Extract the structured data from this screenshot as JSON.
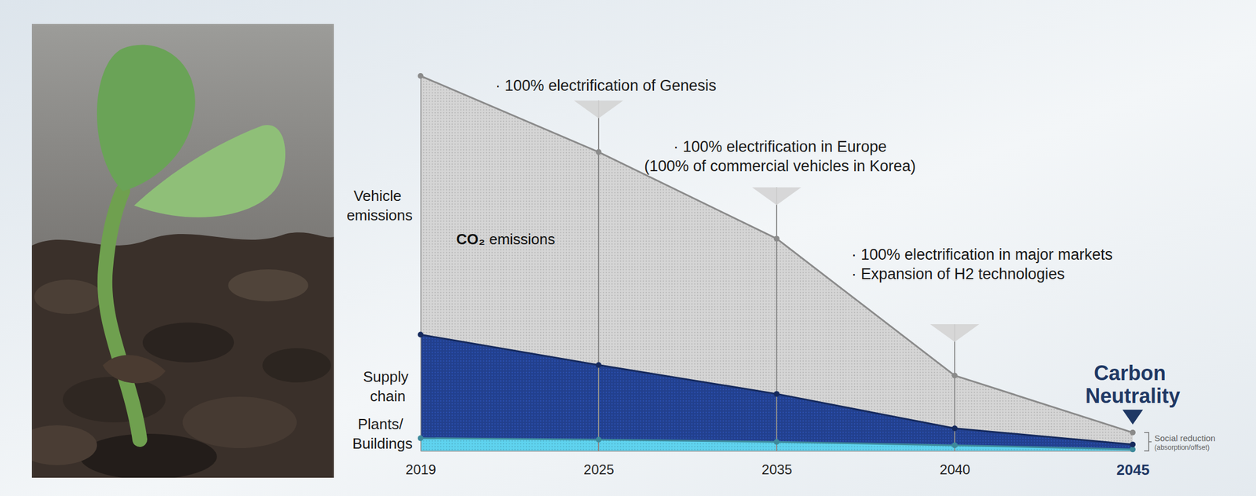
{
  "chart_data": {
    "type": "area",
    "stacked": true,
    "categories": [
      "2019",
      "2025",
      "2035",
      "2040",
      "2045"
    ],
    "series": [
      {
        "name": "Plants/ Buildings",
        "color": "#5fd3ef",
        "values": [
          3.4,
          3.0,
          2.4,
          1.5,
          0.4
        ]
      },
      {
        "name": "Supply chain",
        "color": "#22408e",
        "values": [
          27.6,
          19.9,
          12.8,
          4.5,
          1.3
        ]
      },
      {
        "name": "Vehicle emissions",
        "color": "#d5d5d5",
        "values": [
          69,
          56.8,
          41.4,
          14.1,
          3.2
        ]
      }
    ],
    "ylim": [
      0,
      100
    ],
    "tick_labels": "x",
    "area_label": "CO₂ emissions",
    "milestones": [
      {
        "category": "2025",
        "text": [
          "· 100% electrification of Genesis"
        ]
      },
      {
        "category": "2035",
        "text": [
          "· 100% electrification in Europe",
          "(100% of commercial vehicles in Korea)"
        ]
      },
      {
        "category": "2040",
        "text": [
          "· 100% electrification in major markets",
          "· Expansion of H2 technologies"
        ]
      }
    ],
    "target": {
      "category": "2045",
      "text": "Carbon Neutrality",
      "note": [
        "Social reduction",
        "(absorption/offset)"
      ]
    }
  }
}
